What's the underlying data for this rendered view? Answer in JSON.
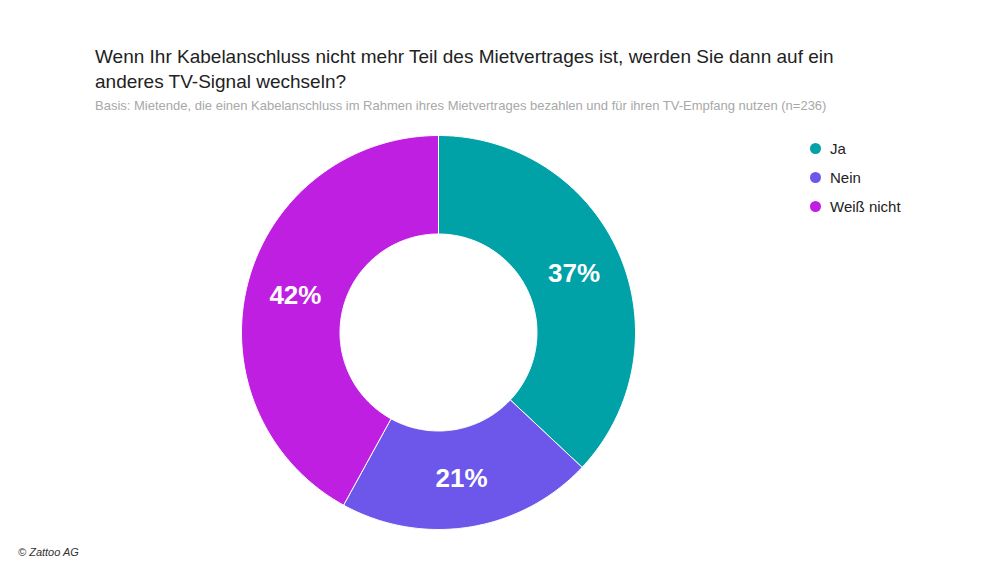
{
  "chart_data": {
    "type": "pie",
    "title": "Wenn Ihr Kabelanschluss nicht mehr Teil des Mietvertrages ist, werden Sie dann auf ein anderes TV-Signal wechseln?",
    "subtitle": "Basis: Mietende, die einen Kabelanschluss im Rahmen ihres Mietvertrages bezahlen und für ihren TV-Empfang nutzen (n=236)",
    "caption": "© Zattoo AG",
    "categories": [
      "Ja",
      "Nein",
      "Weiß nicht"
    ],
    "values": [
      37,
      21,
      42
    ],
    "value_labels": [
      "37%",
      "21%",
      "42%"
    ],
    "colors": [
      "#00a1a7",
      "#6c57ea",
      "#bf1fe0"
    ],
    "data_labels": true,
    "legend": "top-right"
  }
}
